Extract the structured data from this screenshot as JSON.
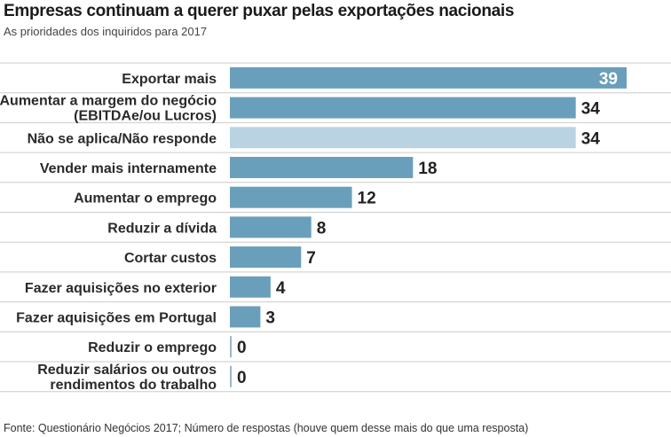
{
  "header": {
    "title": "Empresas continuam a querer puxar pelas exportações nacionais",
    "subtitle": "As prioridades dos inquiridos para 2017"
  },
  "footer": {
    "source": "Fonte: Questionário Negócios 2017; Número de respostas (houve quem desse mais do que uma resposta)"
  },
  "colors": {
    "bar": "#6a9fbb",
    "bar_highlight": "#b9d3e2",
    "grid": "#cccccc"
  },
  "chart_data": {
    "type": "bar",
    "orientation": "horizontal",
    "categories": [
      [
        "Exportar mais"
      ],
      [
        "Aumentar a margem do negócio",
        "(EBITDAe/ou Lucros)"
      ],
      [
        "Não se aplica/Não responde"
      ],
      [
        "Vender mais internamente"
      ],
      [
        "Aumentar o emprego"
      ],
      [
        "Reduzir a dívida"
      ],
      [
        "Cortar custos"
      ],
      [
        "Fazer aquisições no exterior"
      ],
      [
        "Fazer aquisições em Portugal"
      ],
      [
        "Reduzir o emprego"
      ],
      [
        "Reduzir salários ou outros",
        "rendimentos do trabalho"
      ]
    ],
    "values": [
      39,
      34,
      34,
      18,
      12,
      8,
      7,
      4,
      3,
      0,
      0
    ],
    "highlight_index": 2,
    "xlim": [
      0,
      39
    ],
    "grid": true,
    "xlabel": "",
    "ylabel": ""
  }
}
